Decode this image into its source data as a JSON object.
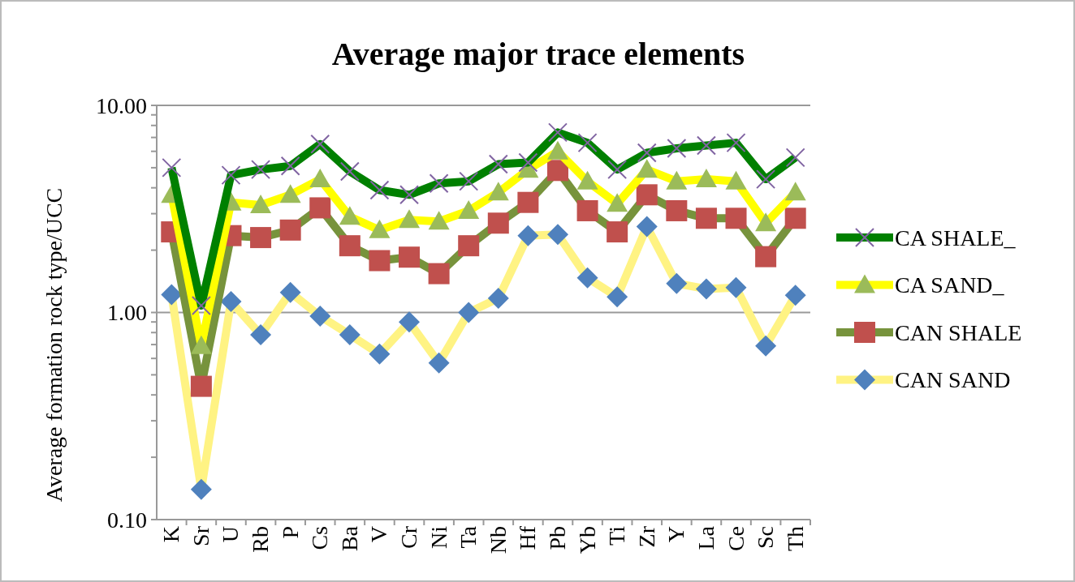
{
  "chart_data": {
    "type": "line",
    "title": "Average major trace elements",
    "ylabel": "Average formation rock type/UCC",
    "categories": [
      "K",
      "Sr",
      "U",
      "Rb",
      "P",
      "Cs",
      "Ba",
      "V",
      "Cr",
      "Ni",
      "Ta",
      "Nb",
      "Hf",
      "Pb",
      "Yb",
      "Ti",
      "Zr",
      "Y",
      "La",
      "Ce",
      "Sc",
      "Th"
    ],
    "series": [
      {
        "name": "CA SHALE_",
        "color": "#008000",
        "marker": "cross",
        "values": [
          5.0,
          1.08,
          4.6,
          4.9,
          5.1,
          6.5,
          4.8,
          3.9,
          3.7,
          4.2,
          4.3,
          5.2,
          5.3,
          7.4,
          6.6,
          4.9,
          5.9,
          6.2,
          6.4,
          6.6,
          4.4,
          5.6
        ]
      },
      {
        "name": "CA SAND_",
        "color": "#ffff00",
        "marker": "triangle",
        "values": [
          3.7,
          0.69,
          3.4,
          3.3,
          3.7,
          4.4,
          2.9,
          2.5,
          2.8,
          2.75,
          3.1,
          3.8,
          4.9,
          6.0,
          4.3,
          3.35,
          4.9,
          4.3,
          4.4,
          4.3,
          2.7,
          3.8
        ]
      },
      {
        "name": "CAN SHALE",
        "color": "#77933c",
        "marker": "square",
        "values": [
          2.45,
          0.44,
          2.35,
          2.3,
          2.5,
          3.2,
          2.1,
          1.78,
          1.85,
          1.54,
          2.1,
          2.7,
          3.4,
          4.85,
          3.1,
          2.45,
          3.7,
          3.1,
          2.85,
          2.85,
          1.86,
          2.85
        ]
      },
      {
        "name": "CAN SAND",
        "color": "#fff383",
        "marker": "diamond",
        "values": [
          1.22,
          0.14,
          1.13,
          0.78,
          1.25,
          0.96,
          0.78,
          0.63,
          0.9,
          0.57,
          1.0,
          1.17,
          2.35,
          2.38,
          1.47,
          1.19,
          2.6,
          1.38,
          1.3,
          1.32,
          0.69,
          1.21
        ]
      }
    ],
    "log": true,
    "ylim": [
      0.1,
      10
    ],
    "yticks": [
      {
        "value": 0.1,
        "label": "0.10"
      },
      {
        "value": 0.2,
        "label": null
      },
      {
        "value": 0.3,
        "label": null
      },
      {
        "value": 0.4,
        "label": null
      },
      {
        "value": 0.5,
        "label": null
      },
      {
        "value": 0.6,
        "label": null
      },
      {
        "value": 0.7,
        "label": null
      },
      {
        "value": 0.8,
        "label": null
      },
      {
        "value": 0.9,
        "label": null
      },
      {
        "value": 1,
        "label": "1.00"
      },
      {
        "value": 2,
        "label": null
      },
      {
        "value": 3,
        "label": null
      },
      {
        "value": 4,
        "label": null
      },
      {
        "value": 5,
        "label": null
      },
      {
        "value": 6,
        "label": null
      },
      {
        "value": 7,
        "label": null
      },
      {
        "value": 8,
        "label": null
      },
      {
        "value": 9,
        "label": null
      },
      {
        "value": 10,
        "label": "10.00"
      }
    ],
    "grid": "y",
    "legend": "right"
  }
}
